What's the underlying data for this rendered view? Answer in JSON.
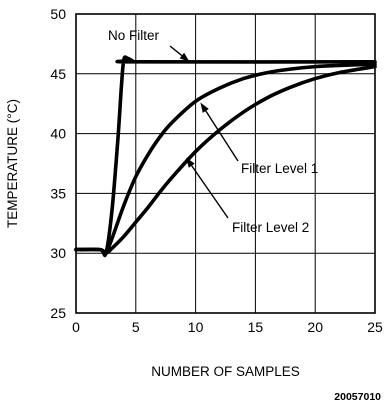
{
  "chart_data": {
    "type": "line",
    "xlabel": "NUMBER OF SAMPLES",
    "ylabel": "TEMPERATURE (°C)",
    "xlim": [
      0,
      25
    ],
    "ylim": [
      25,
      50
    ],
    "x_ticks": [
      0,
      5,
      10,
      15,
      20,
      25
    ],
    "y_ticks": [
      25,
      30,
      35,
      40,
      45,
      50
    ],
    "grid": true,
    "legend": "none",
    "series": [
      {
        "name": "No Filter",
        "x": [
          0,
          2,
          2.5,
          3.0,
          3.5,
          3.8,
          4.0,
          4.3,
          4.7,
          5.0,
          25
        ],
        "y": [
          30.3,
          30.3,
          30.0,
          33.5,
          39.5,
          44.0,
          46.2,
          46.3,
          46.1,
          46.0,
          46.0
        ]
      },
      {
        "name": "Filter Level 1",
        "x": [
          0,
          2,
          2.5,
          3,
          4,
          5,
          6,
          7,
          8,
          10,
          12,
          14,
          16,
          18,
          20,
          22,
          25
        ],
        "y": [
          30.3,
          30.3,
          30.1,
          31.2,
          34.0,
          36.4,
          38.2,
          39.7,
          40.9,
          42.7,
          43.8,
          44.6,
          45.1,
          45.4,
          45.6,
          45.7,
          45.8
        ]
      },
      {
        "name": "Filter Level 2",
        "x": [
          0,
          2,
          2.5,
          3,
          4,
          5,
          6,
          7,
          8,
          10,
          12,
          14,
          16,
          18,
          20,
          22,
          25
        ],
        "y": [
          30.3,
          30.3,
          30.0,
          30.4,
          31.4,
          32.6,
          33.8,
          35.1,
          36.3,
          38.5,
          40.3,
          41.8,
          43.0,
          43.9,
          44.6,
          45.1,
          45.6
        ]
      }
    ],
    "annotations": [
      {
        "text": "No Filter",
        "arrow_to": [
          9.5,
          46.0
        ]
      },
      {
        "text": "Filter Level 1",
        "arrow_to": [
          10.4,
          42.6
        ]
      },
      {
        "text": "Filter Level 2",
        "arrow_to": [
          9.2,
          38.0
        ]
      }
    ],
    "figure_id": "20057010"
  }
}
